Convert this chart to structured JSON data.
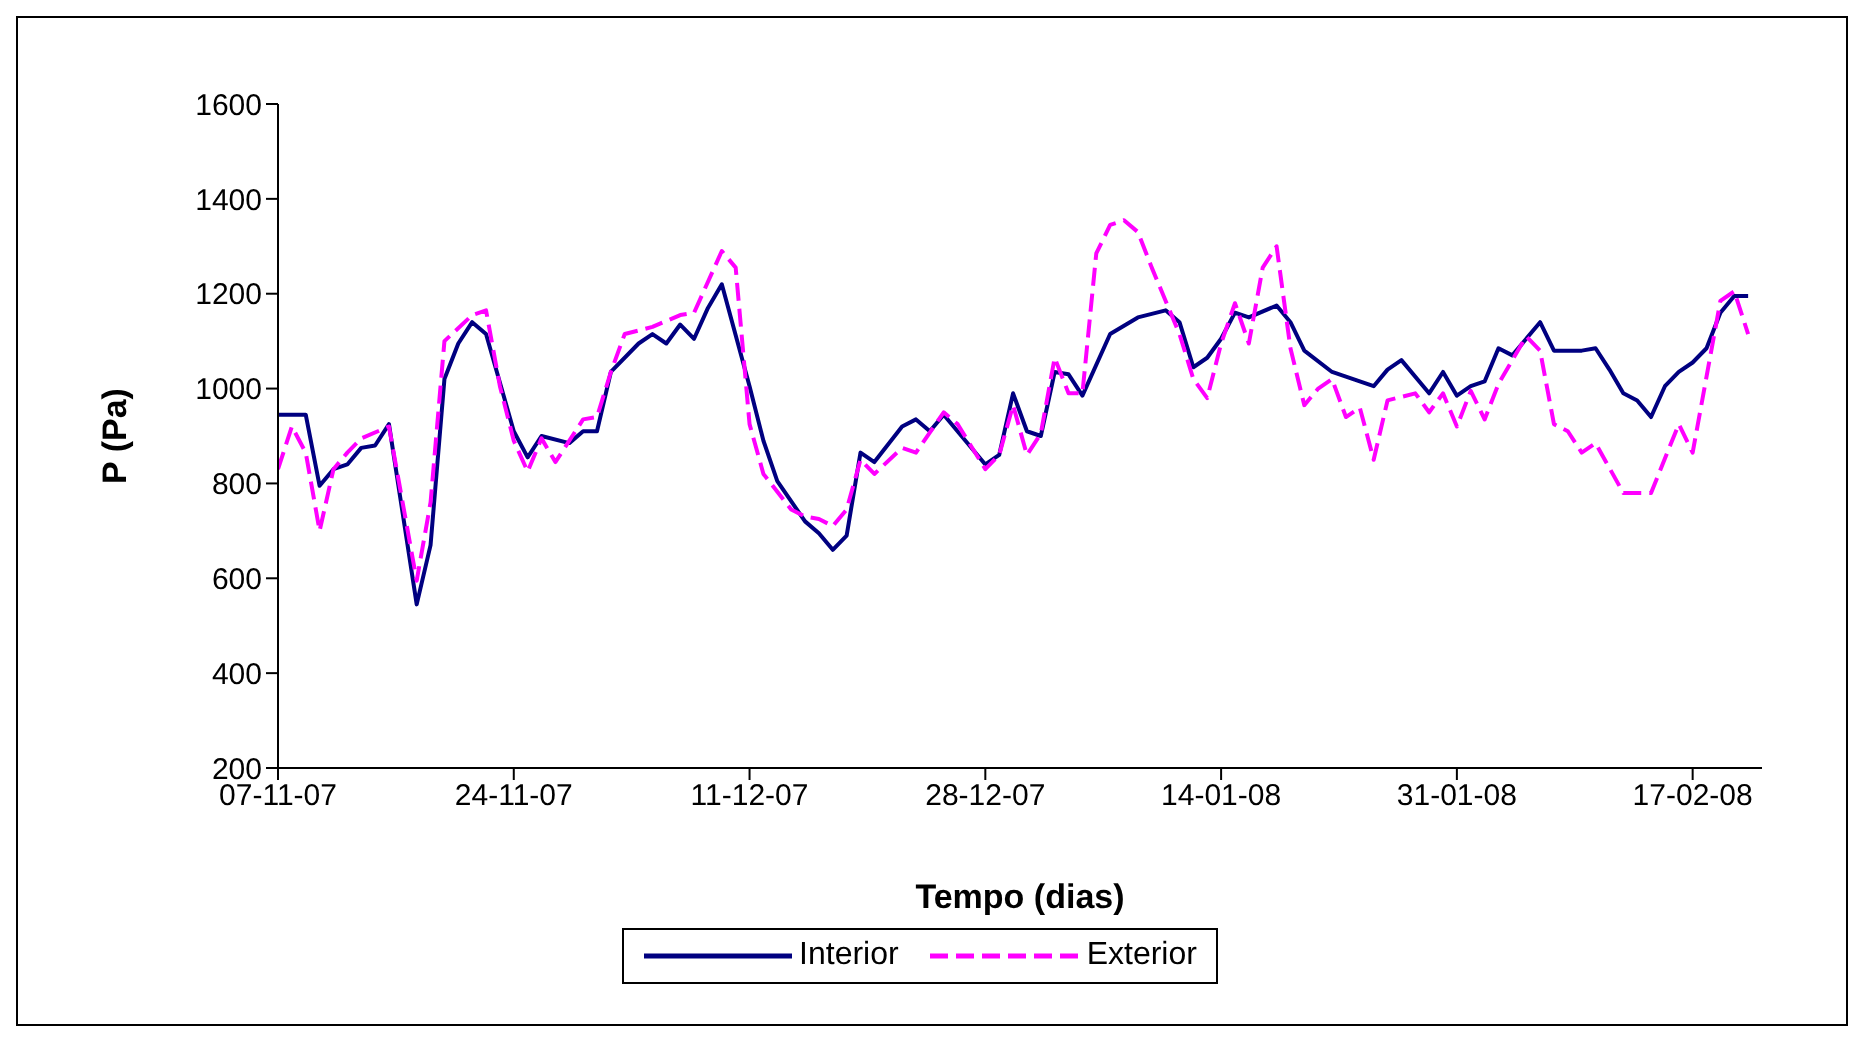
{
  "chart_data": {
    "type": "line",
    "xlabel": "Tempo (dias)",
    "ylabel": "P (Pa)",
    "xlim": [
      "2007-11-07",
      "2008-02-22"
    ],
    "ylim": [
      200,
      1600
    ],
    "yticks": [
      200,
      400,
      600,
      800,
      1000,
      1200,
      1400,
      1600
    ],
    "xticks": [
      {
        "value": "2007-11-07",
        "label": "07-11-07"
      },
      {
        "value": "2007-11-24",
        "label": "24-11-07"
      },
      {
        "value": "2007-12-11",
        "label": "11-12-07"
      },
      {
        "value": "2007-12-28",
        "label": "28-12-07"
      },
      {
        "value": "2008-01-14",
        "label": "14-01-08"
      },
      {
        "value": "2008-01-31",
        "label": "31-01-08"
      },
      {
        "value": "2008-02-17",
        "label": "17-02-08"
      }
    ],
    "grid": false,
    "legend": "bottom",
    "marker": "none",
    "series": [
      {
        "name": "Interior",
        "color": "#000080",
        "line_style": "solid",
        "x": [
          "2007-11-07",
          "2007-11-09",
          "2007-11-10",
          "2007-11-11",
          "2007-11-12",
          "2007-11-13",
          "2007-11-14",
          "2007-11-15",
          "2007-11-17",
          "2007-11-18",
          "2007-11-19",
          "2007-11-20",
          "2007-11-21",
          "2007-11-22",
          "2007-11-24",
          "2007-11-25",
          "2007-11-26",
          "2007-11-28",
          "2007-11-29",
          "2007-11-30",
          "2007-12-01",
          "2007-12-03",
          "2007-12-04",
          "2007-12-05",
          "2007-12-06",
          "2007-12-07",
          "2007-12-08",
          "2007-12-09",
          "2007-12-11",
          "2007-12-12",
          "2007-12-13",
          "2007-12-15",
          "2007-12-16",
          "2007-12-17",
          "2007-12-18",
          "2007-12-19",
          "2007-12-20",
          "2007-12-22",
          "2007-12-23",
          "2007-12-24",
          "2007-12-25",
          "2007-12-28",
          "2007-12-29",
          "2007-12-30",
          "2007-12-31",
          "2008-01-01",
          "2008-01-02",
          "2008-01-03",
          "2008-01-04",
          "2008-01-06",
          "2008-01-08",
          "2008-01-10",
          "2008-01-11",
          "2008-01-12",
          "2008-01-13",
          "2008-01-14",
          "2008-01-15",
          "2008-01-16",
          "2008-01-18",
          "2008-01-19",
          "2008-01-20",
          "2008-01-22",
          "2008-01-23",
          "2008-01-25",
          "2008-01-26",
          "2008-01-27",
          "2008-01-29",
          "2008-01-30",
          "2008-01-31",
          "2008-02-01",
          "2008-02-02",
          "2008-02-03",
          "2008-02-04",
          "2008-02-06",
          "2008-02-07",
          "2008-02-09",
          "2008-02-10",
          "2008-02-11",
          "2008-02-12",
          "2008-02-13",
          "2008-02-14",
          "2008-02-15",
          "2008-02-16",
          "2008-02-17",
          "2008-02-18",
          "2008-02-19",
          "2008-02-20",
          "2008-02-21"
        ],
        "values": [
          945,
          945,
          795,
          830,
          840,
          875,
          880,
          925,
          545,
          670,
          1020,
          1095,
          1140,
          1115,
          910,
          855,
          900,
          885,
          910,
          910,
          1035,
          1095,
          1115,
          1095,
          1135,
          1105,
          1170,
          1220,
          1005,
          890,
          805,
          720,
          695,
          660,
          690,
          865,
          845,
          920,
          935,
          910,
          945,
          840,
          860,
          990,
          910,
          900,
          1035,
          1030,
          985,
          1115,
          1150,
          1165,
          1140,
          1045,
          1065,
          1105,
          1160,
          1150,
          1175,
          1140,
          1080,
          1035,
          1025,
          1005,
          1040,
          1060,
          990,
          1035,
          985,
          1005,
          1015,
          1085,
          1070,
          1140,
          1080,
          1080,
          1085,
          1040,
          990,
          975,
          940,
          1005,
          1035,
          1055,
          1085,
          1160,
          1195,
          1195
        ]
      },
      {
        "name": "Exterior",
        "color": "#ff00ff",
        "line_style": "dashed",
        "x": [
          "2007-11-07",
          "2007-11-08",
          "2007-11-09",
          "2007-11-10",
          "2007-11-11",
          "2007-11-12",
          "2007-11-13",
          "2007-11-15",
          "2007-11-17",
          "2007-11-18",
          "2007-11-19",
          "2007-11-21",
          "2007-11-22",
          "2007-11-23",
          "2007-11-24",
          "2007-11-25",
          "2007-11-26",
          "2007-11-27",
          "2007-11-29",
          "2007-11-30",
          "2007-12-01",
          "2007-12-02",
          "2007-12-04",
          "2007-12-06",
          "2007-12-07",
          "2007-12-09",
          "2007-12-10",
          "2007-12-11",
          "2007-12-12",
          "2007-12-14",
          "2007-12-15",
          "2007-12-16",
          "2007-12-17",
          "2007-12-18",
          "2007-12-19",
          "2007-12-20",
          "2007-12-22",
          "2007-12-23",
          "2007-12-25",
          "2007-12-26",
          "2007-12-28",
          "2007-12-29",
          "2007-12-30",
          "2007-12-31",
          "2008-01-01",
          "2008-01-02",
          "2008-01-03",
          "2008-01-04",
          "2008-01-05",
          "2008-01-06",
          "2008-01-07",
          "2008-01-08",
          "2008-01-09",
          "2008-01-11",
          "2008-01-12",
          "2008-01-13",
          "2008-01-14",
          "2008-01-15",
          "2008-01-16",
          "2008-01-17",
          "2008-01-18",
          "2008-01-19",
          "2008-01-20",
          "2008-01-21",
          "2008-01-22",
          "2008-01-23",
          "2008-01-24",
          "2008-01-25",
          "2008-01-26",
          "2008-01-28",
          "2008-01-29",
          "2008-01-30",
          "2008-01-31",
          "2008-02-01",
          "2008-02-02",
          "2008-02-03",
          "2008-02-05",
          "2008-02-06",
          "2008-02-07",
          "2008-02-08",
          "2008-02-09",
          "2008-02-10",
          "2008-02-12",
          "2008-02-14",
          "2008-02-16",
          "2008-02-17",
          "2008-02-19",
          "2008-02-20",
          "2008-02-21"
        ],
        "values": [
          830,
          920,
          865,
          700,
          830,
          865,
          895,
          920,
          595,
          760,
          1100,
          1155,
          1165,
          1005,
          890,
          825,
          895,
          845,
          935,
          940,
          1035,
          1115,
          1130,
          1155,
          1160,
          1290,
          1255,
          925,
          820,
          745,
          730,
          725,
          710,
          745,
          850,
          820,
          875,
          865,
          950,
          925,
          830,
          860,
          965,
          860,
          905,
          1065,
          990,
          990,
          1285,
          1345,
          1355,
          1330,
          1255,
          1115,
          1020,
          980,
          1095,
          1180,
          1095,
          1255,
          1300,
          1085,
          965,
          1000,
          1020,
          940,
          960,
          850,
          975,
          990,
          950,
          990,
          920,
          995,
          935,
          1010,
          1110,
          1080,
          925,
          910,
          865,
          885,
          780,
          780,
          925,
          865,
          1185,
          1205,
          1115
        ]
      }
    ]
  }
}
